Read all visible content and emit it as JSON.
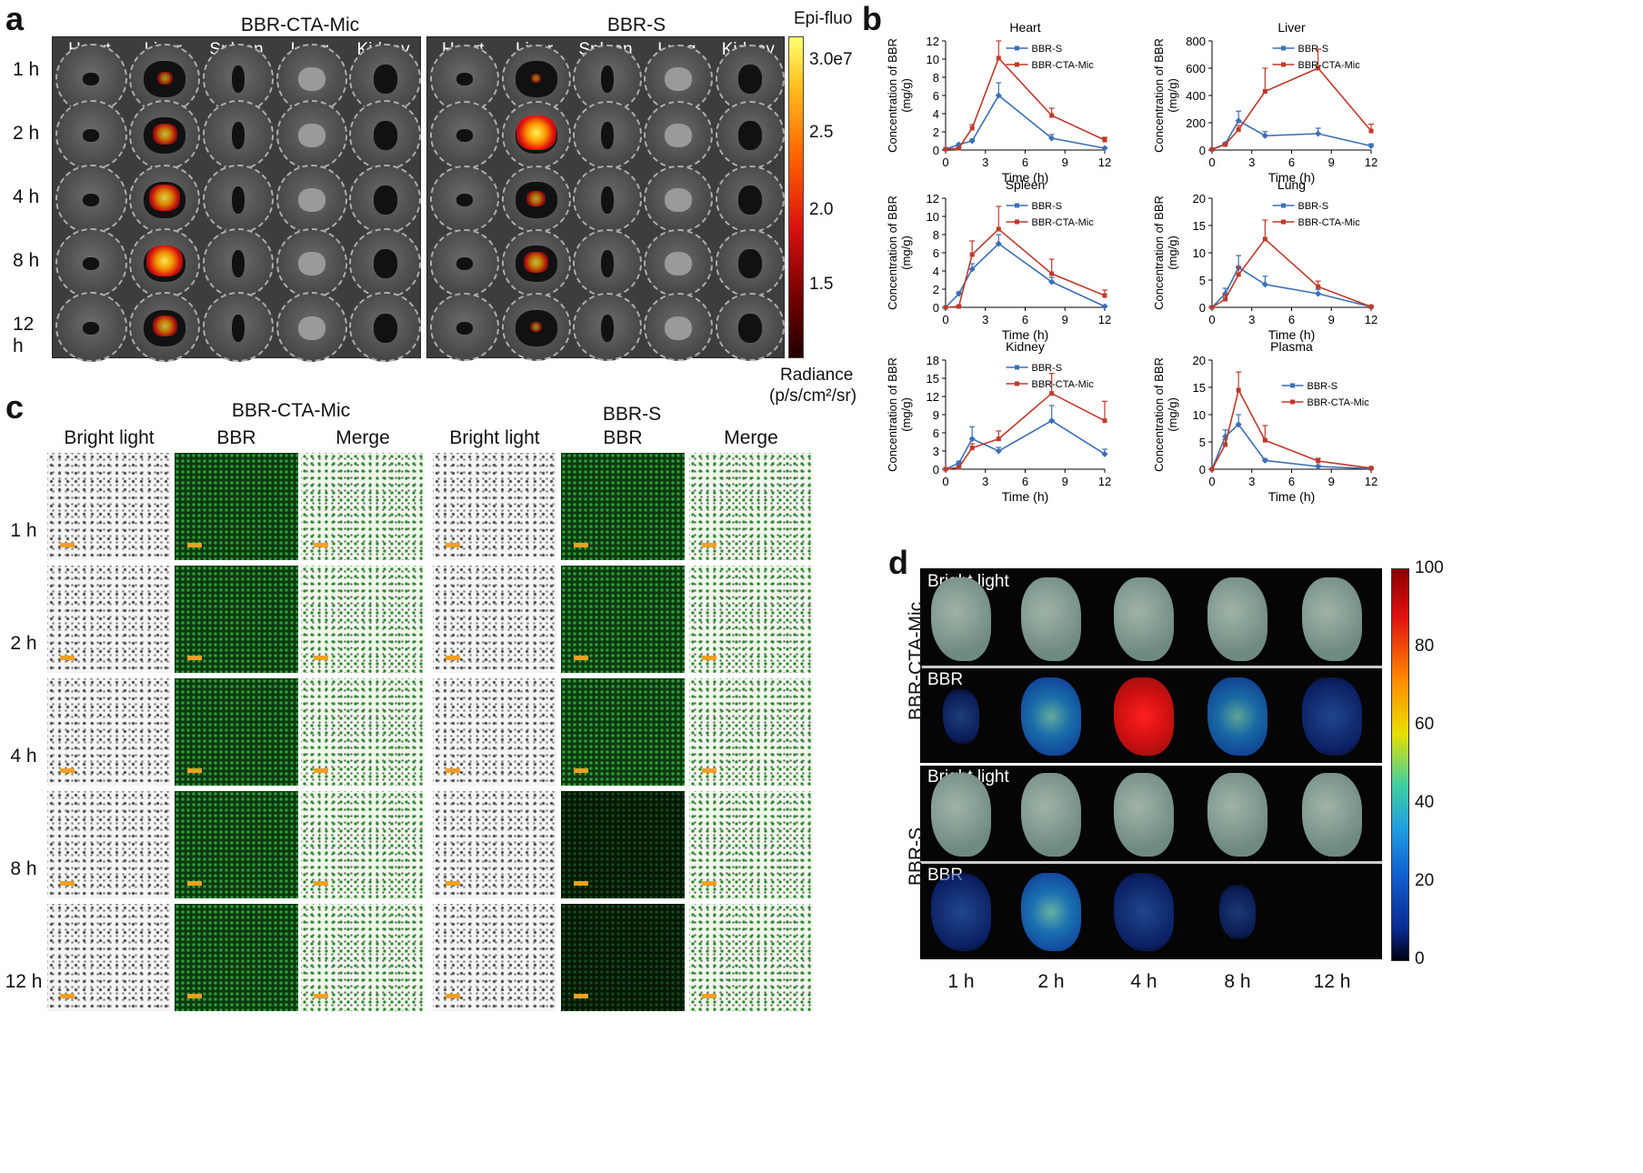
{
  "panel_a": {
    "label": "a",
    "group_left": "BBR-CTA-Mic",
    "group_right": "BBR-S",
    "organs": [
      "Heart",
      "Liver",
      "Spleen",
      "Lung",
      "Kidney"
    ],
    "timepoints": [
      "1 h",
      "2 h",
      "4 h",
      "8 h",
      "12 h"
    ],
    "colorbar_title": "Epi-fluo",
    "colorbar_ticks": [
      "3.0e7",
      "2.5",
      "2.0",
      "1.5"
    ],
    "unit_line1": "Radiance",
    "unit_line2": "(p/s/cm²/sr)"
  },
  "panel_b": {
    "label": "b"
  },
  "panel_c": {
    "label": "c",
    "group_left": "BBR-CTA-Mic",
    "group_right": "BBR-S",
    "columns": [
      "Bright light",
      "BBR",
      "Merge",
      "Bright light",
      "BBR",
      "Merge"
    ],
    "timepoints": [
      "1 h",
      "2 h",
      "4 h",
      "8 h",
      "12 h"
    ]
  },
  "panel_d": {
    "label": "d",
    "group_top": "BBR-CTA-Mic",
    "group_bottom": "BBR-S",
    "row_labels": [
      "Bright light",
      "BBR",
      "Bright light",
      "BBR"
    ],
    "timepoints": [
      "1 h",
      "2 h",
      "4 h",
      "8 h",
      "12 h"
    ],
    "colorbar_ticks": [
      "100",
      "80",
      "60",
      "40",
      "20",
      "0"
    ],
    "intensity_top": [
      0.15,
      0.55,
      1.0,
      0.5,
      0.3
    ],
    "intensity_bottom": [
      0.3,
      0.6,
      0.3,
      0.1,
      0.0
    ]
  },
  "colors": {
    "bbr_s": "#3b6fb6",
    "bbr_cta_mic": "#c0392b"
  },
  "chart_data": [
    {
      "type": "line",
      "title": "Heart",
      "xlabel": "Time (h)",
      "ylabel": "Concentration of BBR (mg/g)",
      "x": [
        0,
        1,
        2,
        4,
        8,
        12
      ],
      "xlim": [
        0,
        12
      ],
      "xticks": [
        0,
        3,
        6,
        9,
        12
      ],
      "ylim": [
        0,
        12
      ],
      "yticks": [
        0,
        2,
        4,
        6,
        8,
        10,
        12
      ],
      "series": [
        {
          "name": "BBR-S",
          "values": [
            0.1,
            0.6,
            1.0,
            6.0,
            1.3,
            0.2
          ],
          "errors": [
            0,
            0.1,
            0.2,
            1.4,
            0.4,
            0.1
          ]
        },
        {
          "name": "BBR-CTA-Mic",
          "values": [
            0.1,
            0.2,
            2.4,
            10.1,
            3.8,
            1.1
          ],
          "errors": [
            0,
            0.1,
            0.4,
            1.9,
            0.8,
            0.3
          ]
        }
      ]
    },
    {
      "type": "line",
      "title": "Liver",
      "xlabel": "Time (h)",
      "ylabel": "Concentration of BBR (mg/g)",
      "x": [
        0,
        1,
        2,
        4,
        8,
        12
      ],
      "xlim": [
        0,
        12
      ],
      "xticks": [
        0,
        3,
        6,
        9,
        12
      ],
      "ylim": [
        0,
        800
      ],
      "yticks": [
        0,
        200,
        400,
        600,
        800
      ],
      "series": [
        {
          "name": "BBR-S",
          "values": [
            5,
            45,
            215,
            105,
            120,
            30
          ],
          "errors": [
            0,
            10,
            70,
            30,
            40,
            15
          ]
        },
        {
          "name": "BBR-CTA-Mic",
          "values": [
            5,
            40,
            150,
            430,
            600,
            140
          ],
          "errors": [
            0,
            10,
            30,
            170,
            140,
            50
          ]
        }
      ]
    },
    {
      "type": "line",
      "title": "Spleen",
      "xlabel": "Time (h)",
      "ylabel": "Concentration of BBR (mg/g)",
      "x": [
        0,
        1,
        2,
        4,
        8,
        12
      ],
      "xlim": [
        0,
        12
      ],
      "xticks": [
        0,
        3,
        6,
        9,
        12
      ],
      "ylim": [
        0,
        12
      ],
      "yticks": [
        0,
        2,
        4,
        6,
        8,
        10,
        12
      ],
      "series": [
        {
          "name": "BBR-S",
          "values": [
            0,
            1.5,
            4.2,
            7.0,
            2.8,
            0.1
          ],
          "errors": [
            0,
            0.2,
            0.6,
            1.0,
            0.5,
            0.1
          ]
        },
        {
          "name": "BBR-CTA-Mic",
          "values": [
            0,
            0.1,
            5.8,
            8.6,
            3.7,
            1.3
          ],
          "errors": [
            0,
            0.1,
            1.5,
            2.5,
            1.6,
            0.6
          ]
        }
      ]
    },
    {
      "type": "line",
      "title": "Lung",
      "xlabel": "Time (h)",
      "ylabel": "Concentration of BBR (mg/g)",
      "x": [
        0,
        1,
        2,
        4,
        8,
        12
      ],
      "xlim": [
        0,
        12
      ],
      "xticks": [
        0,
        3,
        6,
        9,
        12
      ],
      "ylim": [
        0,
        20
      ],
      "yticks": [
        0,
        5,
        10,
        15,
        20
      ],
      "series": [
        {
          "name": "BBR-S",
          "values": [
            0,
            2.5,
            7.3,
            4.2,
            2.5,
            0.1
          ],
          "errors": [
            0,
            1.0,
            2.2,
            1.5,
            0.8,
            0.1
          ]
        },
        {
          "name": "BBR-CTA-Mic",
          "values": [
            0,
            1.5,
            6.0,
            12.5,
            3.8,
            0.1
          ],
          "errors": [
            0,
            0.8,
            1.5,
            3.5,
            1.0,
            0.1
          ]
        }
      ]
    },
    {
      "type": "line",
      "title": "Kidney",
      "xlabel": "Time (h)",
      "ylabel": "Concentration of BBR (mg/g)",
      "x": [
        0,
        1,
        2,
        4,
        8,
        12
      ],
      "xlim": [
        0,
        12
      ],
      "xticks": [
        0,
        3,
        6,
        9,
        12
      ],
      "ylim": [
        0,
        18
      ],
      "yticks": [
        0,
        3,
        6,
        9,
        12,
        15,
        18
      ],
      "series": [
        {
          "name": "BBR-S",
          "values": [
            0,
            1.0,
            5.0,
            3.0,
            8.0,
            2.5
          ],
          "errors": [
            0,
            0.3,
            2.0,
            0.6,
            2.5,
            0.8
          ]
        },
        {
          "name": "BBR-CTA-Mic",
          "values": [
            0,
            0.3,
            3.5,
            5.0,
            12.5,
            8.0
          ],
          "errors": [
            0,
            0.2,
            0.7,
            1.3,
            3.3,
            3.2
          ]
        }
      ]
    },
    {
      "type": "line",
      "title": "Plasma",
      "xlabel": "Time (h)",
      "ylabel": "Concentration of BBR (mg/g)",
      "x": [
        0,
        1,
        2,
        4,
        8,
        12
      ],
      "xlim": [
        0,
        12
      ],
      "xticks": [
        0,
        3,
        6,
        9,
        12
      ],
      "ylim": [
        0,
        20
      ],
      "yticks": [
        0,
        5,
        10,
        15,
        20
      ],
      "series": [
        {
          "name": "BBR-S",
          "values": [
            0,
            6.0,
            8.2,
            1.6,
            0.5,
            0.1
          ],
          "errors": [
            0,
            1.2,
            1.8,
            0.3,
            0.2,
            0.1
          ]
        },
        {
          "name": "BBR-CTA-Mic",
          "values": [
            0,
            4.5,
            14.5,
            5.3,
            1.5,
            0.2
          ],
          "errors": [
            0,
            1.0,
            3.3,
            2.7,
            0.5,
            0.1
          ]
        }
      ]
    }
  ]
}
